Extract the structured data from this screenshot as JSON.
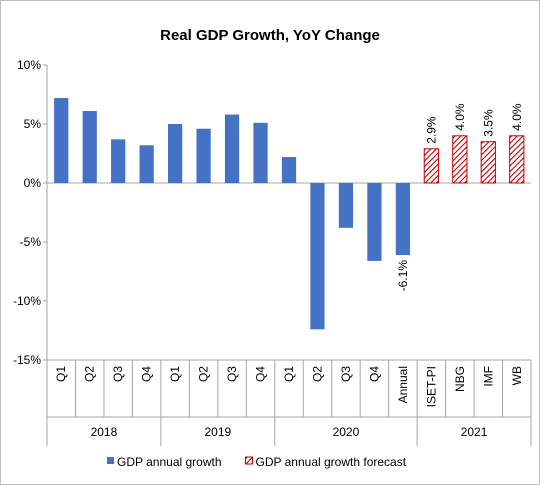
{
  "chart_data": {
    "type": "bar",
    "title": "Real GDP Growth, YoY Change",
    "ylim": [
      -15,
      10
    ],
    "yticks": [
      10,
      5,
      0,
      -5,
      -10,
      -15
    ],
    "ytick_labels": [
      "10%",
      "5%",
      "0%",
      "-5%",
      "-10%",
      "-15%"
    ],
    "groups": [
      {
        "label": "2018",
        "categories": [
          "Q1",
          "Q2",
          "Q3",
          "Q4"
        ]
      },
      {
        "label": "2019",
        "categories": [
          "Q1",
          "Q2",
          "Q3",
          "Q4"
        ]
      },
      {
        "label": "2020",
        "categories": [
          "Q1",
          "Q2",
          "Q3",
          "Q4",
          "Annual"
        ]
      },
      {
        "label": "2021",
        "categories": [
          "ISET-PI",
          "NBG",
          "IMF",
          "WB"
        ]
      }
    ],
    "series": [
      {
        "name": "GDP annual growth",
        "color": "#4472C4",
        "values": [
          7.2,
          6.1,
          3.7,
          3.2,
          5.0,
          4.6,
          5.8,
          5.1,
          2.2,
          -12.4,
          -3.8,
          -6.6,
          -6.1,
          null,
          null,
          null,
          null
        ]
      },
      {
        "name": "GDP annual growth forecast",
        "color": "#C00000",
        "pattern": "diagonal-hatch",
        "values": [
          null,
          null,
          null,
          null,
          null,
          null,
          null,
          null,
          null,
          null,
          null,
          null,
          null,
          2.9,
          4.0,
          3.5,
          4.0
        ]
      }
    ],
    "data_labels": [
      {
        "index": 12,
        "text": "-6.1%"
      },
      {
        "index": 13,
        "text": "2.9%"
      },
      {
        "index": 14,
        "text": "4.0%"
      },
      {
        "index": 15,
        "text": "3.5%"
      },
      {
        "index": 16,
        "text": "4.0%"
      }
    ],
    "grid": false,
    "legend_position": "bottom"
  }
}
